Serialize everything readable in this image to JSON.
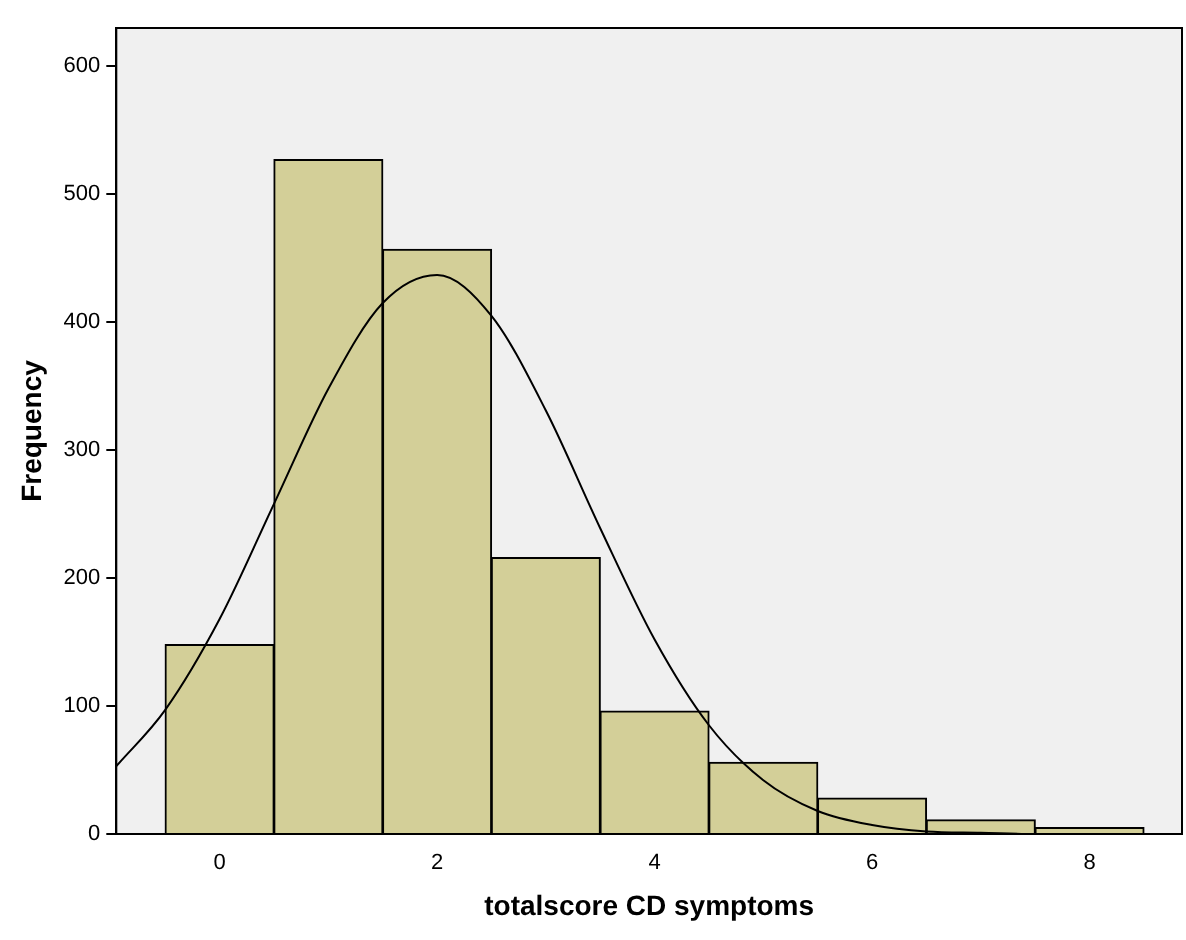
{
  "chart_data": {
    "type": "histogram",
    "xlabel": "totalscore CD symptoms",
    "ylabel": "Frequency",
    "bins": [
      -0.5,
      0.5,
      1.5,
      2.5,
      3.5,
      4.5,
      5.5,
      6.5,
      7.5,
      8.5
    ],
    "series": [
      {
        "color": "#d3cf98",
        "values": [
          148,
          527,
          457,
          216,
          96,
          56,
          28,
          11,
          5
        ]
      },
      {
        "type": "line",
        "color": "#000000",
        "x": [
          -0.95,
          -0.5,
          0,
          0.5,
          1,
          1.5,
          2,
          2.5,
          3,
          3.5,
          4,
          4.5,
          5,
          5.5,
          6,
          6.5,
          7,
          7.5,
          8,
          8.5,
          8.85
        ],
        "values": [
          53,
          97,
          168,
          258,
          348,
          415,
          437,
          405,
          331,
          239,
          152,
          85,
          42,
          18,
          7,
          2,
          1,
          0,
          0,
          0,
          0
        ]
      }
    ],
    "xlim": [
      -0.95,
      8.85
    ],
    "xticks": [
      0,
      2,
      4,
      6,
      8
    ],
    "ylim": [
      0,
      630
    ],
    "yticks": [
      0,
      100,
      200,
      300,
      400,
      500,
      600
    ],
    "grid": false,
    "legend": false,
    "marker": "none",
    "line_style": "solid"
  }
}
